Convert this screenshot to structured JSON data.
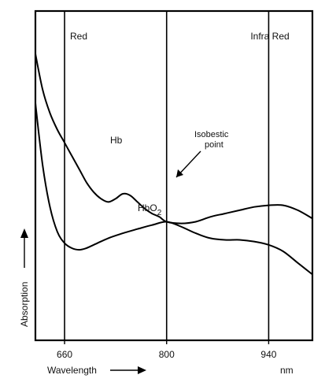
{
  "chart_data": {
    "type": "line",
    "xlabel": "Wavelength",
    "ylabel": "Absorption",
    "x_unit": "nm",
    "xlim": [
      620,
      1000
    ],
    "x_ticks": [
      {
        "value": 660,
        "label": "660"
      },
      {
        "value": 800,
        "label": "800"
      },
      {
        "value": 940,
        "label": "940"
      }
    ],
    "reference_lines": [
      {
        "x": 660,
        "label": "Red"
      },
      {
        "x": 800,
        "label": ""
      },
      {
        "x": 940,
        "label": "Infra Red"
      }
    ],
    "series": [
      {
        "name": "Hb",
        "label_parts": {
          "base": "Hb",
          "sub": ""
        },
        "points": [
          [
            620,
            0.87
          ],
          [
            630,
            0.76
          ],
          [
            640,
            0.69
          ],
          [
            650,
            0.64
          ],
          [
            660,
            0.6
          ],
          [
            670,
            0.56
          ],
          [
            680,
            0.52
          ],
          [
            690,
            0.48
          ],
          [
            700,
            0.45
          ],
          [
            710,
            0.43
          ],
          [
            720,
            0.42
          ],
          [
            730,
            0.43
          ],
          [
            740,
            0.445
          ],
          [
            750,
            0.44
          ],
          [
            760,
            0.42
          ],
          [
            770,
            0.4
          ],
          [
            780,
            0.385
          ],
          [
            790,
            0.375
          ],
          [
            800,
            0.36
          ],
          [
            820,
            0.355
          ],
          [
            840,
            0.36
          ],
          [
            860,
            0.375
          ],
          [
            880,
            0.385
          ],
          [
            900,
            0.395
          ],
          [
            920,
            0.405
          ],
          [
            940,
            0.41
          ],
          [
            960,
            0.41
          ],
          [
            980,
            0.395
          ],
          [
            1000,
            0.37
          ]
        ]
      },
      {
        "name": "HbO2",
        "label_parts": {
          "base": "HbO",
          "sub": "2"
        },
        "points": [
          [
            620,
            0.72
          ],
          [
            630,
            0.53
          ],
          [
            640,
            0.405
          ],
          [
            650,
            0.33
          ],
          [
            660,
            0.295
          ],
          [
            670,
            0.28
          ],
          [
            680,
            0.275
          ],
          [
            690,
            0.28
          ],
          [
            700,
            0.29
          ],
          [
            720,
            0.31
          ],
          [
            740,
            0.325
          ],
          [
            760,
            0.338
          ],
          [
            780,
            0.35
          ],
          [
            800,
            0.36
          ],
          [
            820,
            0.345
          ],
          [
            840,
            0.325
          ],
          [
            860,
            0.31
          ],
          [
            880,
            0.305
          ],
          [
            900,
            0.305
          ],
          [
            920,
            0.3
          ],
          [
            940,
            0.29
          ],
          [
            960,
            0.27
          ],
          [
            980,
            0.235
          ],
          [
            1000,
            0.2
          ]
        ]
      }
    ],
    "annotations": [
      {
        "text_lines": [
          "Isobestic",
          "point"
        ],
        "x": 800,
        "y": 0.36
      }
    ],
    "grid": false,
    "legend": "none"
  }
}
